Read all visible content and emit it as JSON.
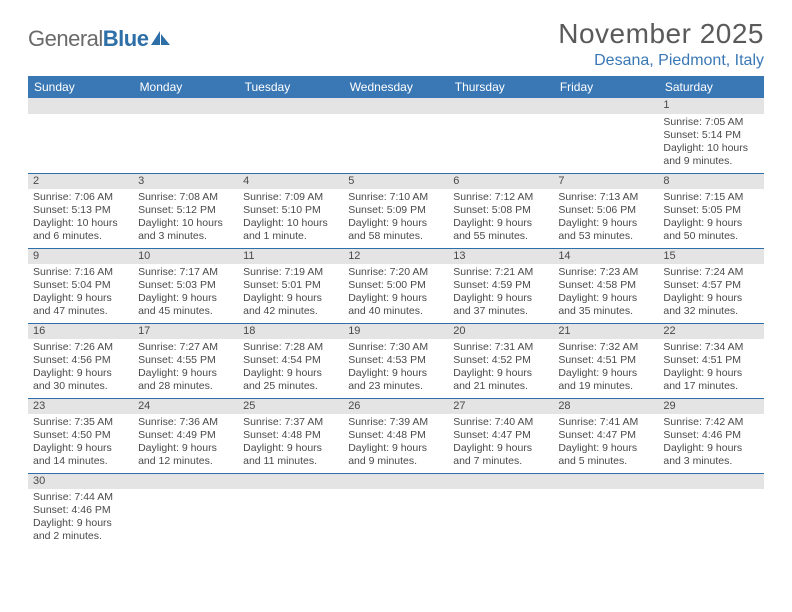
{
  "logo": {
    "text1": "General",
    "text2": "Blue"
  },
  "title": "November 2025",
  "location": "Desana, Piedmont, Italy",
  "colors": {
    "header_bg": "#3a78b5",
    "header_fg": "#ffffff",
    "daynum_bg": "#e4e4e4",
    "rule": "#2f6fa8",
    "text": "#4a4a4a",
    "title": "#5a5a5a",
    "location": "#3a78b5"
  },
  "weekdays": [
    "Sunday",
    "Monday",
    "Tuesday",
    "Wednesday",
    "Thursday",
    "Friday",
    "Saturday"
  ],
  "weeks": [
    [
      null,
      null,
      null,
      null,
      null,
      null,
      {
        "n": "1",
        "sr": "Sunrise: 7:05 AM",
        "ss": "Sunset: 5:14 PM",
        "dl": "Daylight: 10 hours and 9 minutes."
      }
    ],
    [
      {
        "n": "2",
        "sr": "Sunrise: 7:06 AM",
        "ss": "Sunset: 5:13 PM",
        "dl": "Daylight: 10 hours and 6 minutes."
      },
      {
        "n": "3",
        "sr": "Sunrise: 7:08 AM",
        "ss": "Sunset: 5:12 PM",
        "dl": "Daylight: 10 hours and 3 minutes."
      },
      {
        "n": "4",
        "sr": "Sunrise: 7:09 AM",
        "ss": "Sunset: 5:10 PM",
        "dl": "Daylight: 10 hours and 1 minute."
      },
      {
        "n": "5",
        "sr": "Sunrise: 7:10 AM",
        "ss": "Sunset: 5:09 PM",
        "dl": "Daylight: 9 hours and 58 minutes."
      },
      {
        "n": "6",
        "sr": "Sunrise: 7:12 AM",
        "ss": "Sunset: 5:08 PM",
        "dl": "Daylight: 9 hours and 55 minutes."
      },
      {
        "n": "7",
        "sr": "Sunrise: 7:13 AM",
        "ss": "Sunset: 5:06 PM",
        "dl": "Daylight: 9 hours and 53 minutes."
      },
      {
        "n": "8",
        "sr": "Sunrise: 7:15 AM",
        "ss": "Sunset: 5:05 PM",
        "dl": "Daylight: 9 hours and 50 minutes."
      }
    ],
    [
      {
        "n": "9",
        "sr": "Sunrise: 7:16 AM",
        "ss": "Sunset: 5:04 PM",
        "dl": "Daylight: 9 hours and 47 minutes."
      },
      {
        "n": "10",
        "sr": "Sunrise: 7:17 AM",
        "ss": "Sunset: 5:03 PM",
        "dl": "Daylight: 9 hours and 45 minutes."
      },
      {
        "n": "11",
        "sr": "Sunrise: 7:19 AM",
        "ss": "Sunset: 5:01 PM",
        "dl": "Daylight: 9 hours and 42 minutes."
      },
      {
        "n": "12",
        "sr": "Sunrise: 7:20 AM",
        "ss": "Sunset: 5:00 PM",
        "dl": "Daylight: 9 hours and 40 minutes."
      },
      {
        "n": "13",
        "sr": "Sunrise: 7:21 AM",
        "ss": "Sunset: 4:59 PM",
        "dl": "Daylight: 9 hours and 37 minutes."
      },
      {
        "n": "14",
        "sr": "Sunrise: 7:23 AM",
        "ss": "Sunset: 4:58 PM",
        "dl": "Daylight: 9 hours and 35 minutes."
      },
      {
        "n": "15",
        "sr": "Sunrise: 7:24 AM",
        "ss": "Sunset: 4:57 PM",
        "dl": "Daylight: 9 hours and 32 minutes."
      }
    ],
    [
      {
        "n": "16",
        "sr": "Sunrise: 7:26 AM",
        "ss": "Sunset: 4:56 PM",
        "dl": "Daylight: 9 hours and 30 minutes."
      },
      {
        "n": "17",
        "sr": "Sunrise: 7:27 AM",
        "ss": "Sunset: 4:55 PM",
        "dl": "Daylight: 9 hours and 28 minutes."
      },
      {
        "n": "18",
        "sr": "Sunrise: 7:28 AM",
        "ss": "Sunset: 4:54 PM",
        "dl": "Daylight: 9 hours and 25 minutes."
      },
      {
        "n": "19",
        "sr": "Sunrise: 7:30 AM",
        "ss": "Sunset: 4:53 PM",
        "dl": "Daylight: 9 hours and 23 minutes."
      },
      {
        "n": "20",
        "sr": "Sunrise: 7:31 AM",
        "ss": "Sunset: 4:52 PM",
        "dl": "Daylight: 9 hours and 21 minutes."
      },
      {
        "n": "21",
        "sr": "Sunrise: 7:32 AM",
        "ss": "Sunset: 4:51 PM",
        "dl": "Daylight: 9 hours and 19 minutes."
      },
      {
        "n": "22",
        "sr": "Sunrise: 7:34 AM",
        "ss": "Sunset: 4:51 PM",
        "dl": "Daylight: 9 hours and 17 minutes."
      }
    ],
    [
      {
        "n": "23",
        "sr": "Sunrise: 7:35 AM",
        "ss": "Sunset: 4:50 PM",
        "dl": "Daylight: 9 hours and 14 minutes."
      },
      {
        "n": "24",
        "sr": "Sunrise: 7:36 AM",
        "ss": "Sunset: 4:49 PM",
        "dl": "Daylight: 9 hours and 12 minutes."
      },
      {
        "n": "25",
        "sr": "Sunrise: 7:37 AM",
        "ss": "Sunset: 4:48 PM",
        "dl": "Daylight: 9 hours and 11 minutes."
      },
      {
        "n": "26",
        "sr": "Sunrise: 7:39 AM",
        "ss": "Sunset: 4:48 PM",
        "dl": "Daylight: 9 hours and 9 minutes."
      },
      {
        "n": "27",
        "sr": "Sunrise: 7:40 AM",
        "ss": "Sunset: 4:47 PM",
        "dl": "Daylight: 9 hours and 7 minutes."
      },
      {
        "n": "28",
        "sr": "Sunrise: 7:41 AM",
        "ss": "Sunset: 4:47 PM",
        "dl": "Daylight: 9 hours and 5 minutes."
      },
      {
        "n": "29",
        "sr": "Sunrise: 7:42 AM",
        "ss": "Sunset: 4:46 PM",
        "dl": "Daylight: 9 hours and 3 minutes."
      }
    ],
    [
      {
        "n": "30",
        "sr": "Sunrise: 7:44 AM",
        "ss": "Sunset: 4:46 PM",
        "dl": "Daylight: 9 hours and 2 minutes."
      },
      null,
      null,
      null,
      null,
      null,
      null
    ]
  ]
}
